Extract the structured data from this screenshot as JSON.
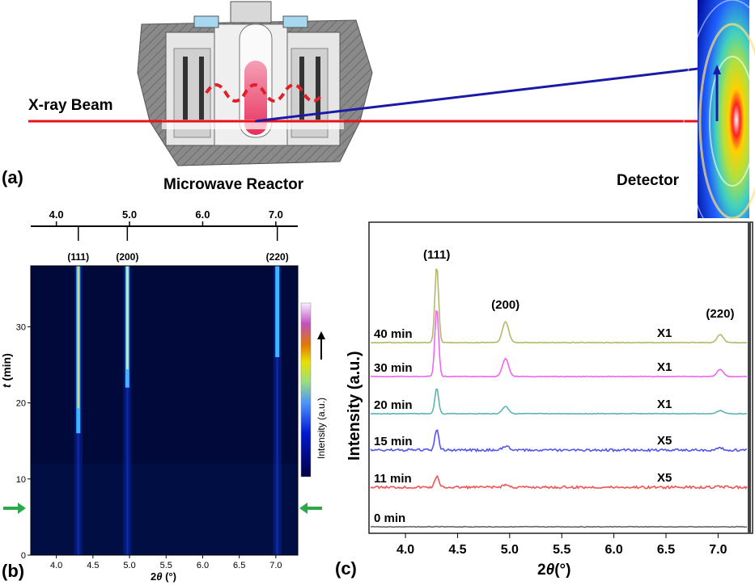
{
  "panel_a": {
    "label": "(a)",
    "beam_label": "X-ray Beam",
    "reactor_label": "Microwave Reactor",
    "detector_label": "Detector"
  },
  "panel_b": {
    "label": "(b)",
    "top_axis_ticks": [
      "4.0",
      "5.0",
      "6.0",
      "7.0"
    ],
    "peak_labels": [
      "(111)",
      "(200)",
      "(220)"
    ],
    "ylabel_t": "t",
    "ylabel_rest": " (min)",
    "y_ticks": [
      "0",
      "10",
      "20",
      "30"
    ],
    "x_ticks": [
      "4.0",
      "4.5",
      "5.0",
      "5.5",
      "6.0",
      "6.5",
      "7.0"
    ],
    "xlabel_2": "2",
    "xlabel_theta": "θ",
    "xlabel_unit": " (°)",
    "colorbar_label": "Intensity (a.u.)",
    "colorbar_colors": [
      "#000040",
      "#0010c0",
      "#3a7fff",
      "#9be07a",
      "#e8e000",
      "#e07800",
      "#c050c0",
      "#f8f0ff"
    ]
  },
  "panel_c": {
    "label": "(c)",
    "ylabel": "Intensity (a.u.)",
    "xlabel_2": "2",
    "xlabel_theta": "θ",
    "xlabel_unit": "(°)"
  },
  "chart_data": [
    {
      "type": "heatmap",
      "x": {
        "label": "2θ (°)",
        "range": [
          3.65,
          7.3
        ],
        "ticks": [
          4.0,
          4.5,
          5.0,
          5.5,
          6.0,
          6.5,
          7.0
        ]
      },
      "y": {
        "label": "t (min)",
        "range": [
          0,
          38
        ],
        "ticks": [
          0,
          10,
          20,
          30
        ]
      },
      "peaks": [
        {
          "label": "(111)",
          "two_theta": 4.3,
          "onset_min": 16
        },
        {
          "label": "(200)",
          "two_theta": 4.97,
          "onset_min": 22
        },
        {
          "label": "(220)",
          "two_theta": 7.02,
          "onset_min": 26
        }
      ],
      "arrow_marker_min": 6
    },
    {
      "type": "line",
      "xlabel": "2θ(°)",
      "ylabel": "Intensity (a.u.)",
      "xlim": [
        3.65,
        7.3
      ],
      "x_ticks": [
        4.0,
        4.5,
        5.0,
        5.5,
        6.0,
        6.5,
        7.0
      ],
      "peak_positions": [
        {
          "label": "(111)",
          "two_theta": 4.3
        },
        {
          "label": "(200)",
          "two_theta": 4.96
        },
        {
          "label": "(220)",
          "two_theta": 7.02
        }
      ],
      "series": [
        {
          "name": "40 min",
          "scale": "X1",
          "color": "#b5b86c",
          "heights": [
            0.95,
            0.26,
            0.1
          ]
        },
        {
          "name": "30 min",
          "scale": "X1",
          "color": "#ee66ee",
          "heights": [
            0.85,
            0.22,
            0.09
          ]
        },
        {
          "name": "20 min",
          "scale": "X1",
          "color": "#5fb3b3",
          "heights": [
            0.32,
            0.09,
            0.04
          ]
        },
        {
          "name": "15 min",
          "scale": "X5",
          "color": "#5555ee",
          "heights": [
            0.26,
            0.05,
            0.02
          ]
        },
        {
          "name": "11 min",
          "scale": "X5",
          "color": "#ee5555",
          "heights": [
            0.14,
            0.03,
            0.01
          ]
        },
        {
          "name": "0 min",
          "scale": "",
          "color": "#666666",
          "heights": [
            0,
            0,
            0
          ]
        }
      ]
    }
  ]
}
